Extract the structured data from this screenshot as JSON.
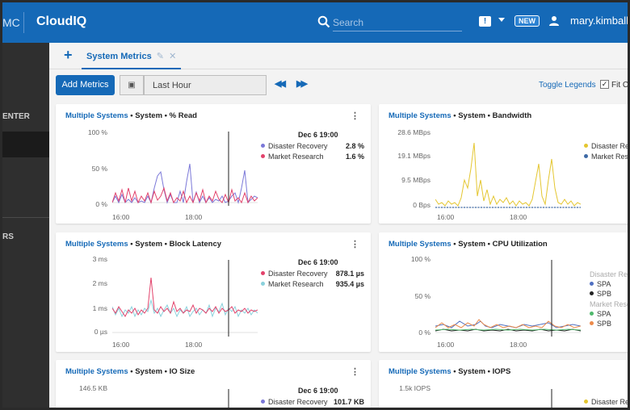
{
  "header": {
    "brand_prefix": "MC",
    "brand": "CloudIQ",
    "search_placeholder": "Search",
    "new_badge": "NEW",
    "user_name": "mary.kimball@"
  },
  "sidebar": {
    "section1": "ENTER",
    "section2": "RS"
  },
  "tabs": [
    {
      "label": "System Metrics"
    }
  ],
  "toolbar": {
    "add_metrics": "Add Metrics",
    "time_range": "Last Hour",
    "toggle_legends": "Toggle Legends",
    "fit_label": "Fit Cha",
    "fit_checked": true
  },
  "colors": {
    "disaster_recovery": "#7b78d8",
    "market_research": "#e2426b",
    "dr_bandwidth": "#e4c630",
    "mr_bandwidth": "#3e6aa6",
    "mr_latency_line": "#8ad1dc",
    "spa_dr": "#4f6fc1",
    "spb_dr": "#222222",
    "spa_mr": "#4fb86c",
    "spb_mr": "#ec8a4a"
  },
  "panels": [
    {
      "system": "Multiple Systems",
      "metric_path": " • System • % Read",
      "yticks": [
        "100 %",
        "50 %",
        "0 %"
      ],
      "xticks": [
        "16:00",
        "18:00"
      ],
      "legend_date": "Dec 6 19:00",
      "legend": [
        {
          "name": "Disaster Recovery",
          "value": "2.8 %"
        },
        {
          "name": "Market Research",
          "value": "1.6 %"
        }
      ]
    },
    {
      "system": "Multiple Systems",
      "metric_path": " • System • Bandwidth",
      "yticks": [
        "28.6 MBps",
        "19.1 MBps",
        "9.5 MBps",
        "0 Bps"
      ],
      "xticks": [
        "16:00",
        "18:00"
      ],
      "legend": [
        {
          "name": "Disaster Reco"
        },
        {
          "name": "Market Resea"
        }
      ]
    },
    {
      "system": "Multiple Systems",
      "metric_path": " • System • Block Latency",
      "yticks": [
        "3 ms",
        "2 ms",
        "1 ms",
        "0 µs"
      ],
      "xticks": [
        "16:00",
        "18:00"
      ],
      "legend_date": "Dec 6 19:00",
      "legend": [
        {
          "name": "Disaster Recovery",
          "value": "878.1 µs"
        },
        {
          "name": "Market Research",
          "value": "935.4 µs"
        }
      ]
    },
    {
      "system": "Multiple Systems",
      "metric_path": " • System • CPU Utilization",
      "yticks": [
        "100 %",
        "50 %",
        "0 %"
      ],
      "xticks": [
        "16:00",
        "18:00"
      ],
      "legend_groups": [
        {
          "name": "Disaster Reco",
          "items": [
            "SPA",
            "SPB"
          ]
        },
        {
          "name": "Market Resea",
          "items": [
            "SPA",
            "SPB"
          ]
        }
      ]
    },
    {
      "system": "Multiple Systems",
      "metric_path": " • System • IO Size",
      "yticks": [
        "146.5 KB"
      ],
      "legend_date": "Dec 6 19:00",
      "legend": [
        {
          "name": "Disaster Recovery",
          "value": "101.7 KB"
        }
      ]
    },
    {
      "system": "Multiple Systems",
      "metric_path": " • System • IOPS",
      "yticks": [
        "1.5k IOPS"
      ],
      "legend": [
        {
          "name": "Disaster Reco"
        }
      ]
    }
  ]
}
